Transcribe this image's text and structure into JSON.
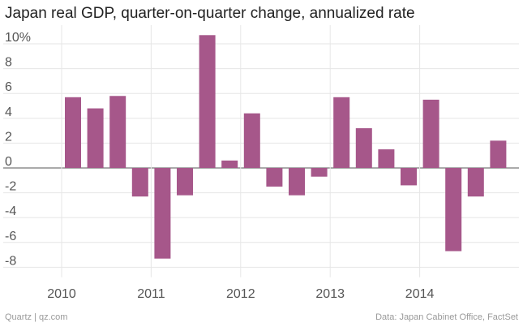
{
  "chart_data": {
    "type": "bar",
    "title": "Japan real GDP, quarter-on-quarter change, annualized rate",
    "xlabel": "",
    "ylabel": "",
    "ylim": [
      -8.8,
      11.5
    ],
    "y_ticks": [
      10,
      8,
      6,
      4,
      2,
      0,
      -2,
      -4,
      -6,
      -8
    ],
    "y_tick_labels": [
      "10%",
      "8",
      "6",
      "4",
      "2",
      "0",
      "-2",
      "-4",
      "-6",
      "-8"
    ],
    "x_tick_labels": [
      "2010",
      "2011",
      "2012",
      "2013",
      "2014"
    ],
    "categories": [
      "2010 Q1",
      "2010 Q2",
      "2010 Q3",
      "2010 Q4",
      "2011 Q1",
      "2011 Q2",
      "2011 Q3",
      "2011 Q4",
      "2012 Q1",
      "2012 Q2",
      "2012 Q3",
      "2012 Q4",
      "2013 Q1",
      "2013 Q2",
      "2013 Q3",
      "2013 Q4",
      "2014 Q1",
      "2014 Q2",
      "2014 Q3",
      "2014 Q4"
    ],
    "values": [
      5.7,
      4.8,
      5.8,
      -2.3,
      -7.3,
      -2.2,
      10.7,
      0.6,
      4.4,
      -1.5,
      -2.2,
      -0.7,
      5.7,
      3.2,
      1.5,
      -1.4,
      5.5,
      -6.7,
      -2.3,
      2.2
    ],
    "bar_color": "#a6578a",
    "grid": true
  },
  "footer": {
    "source_left": "Quartz | qz.com",
    "source_right": "Data: Japan Cabinet Office, FactSet"
  }
}
